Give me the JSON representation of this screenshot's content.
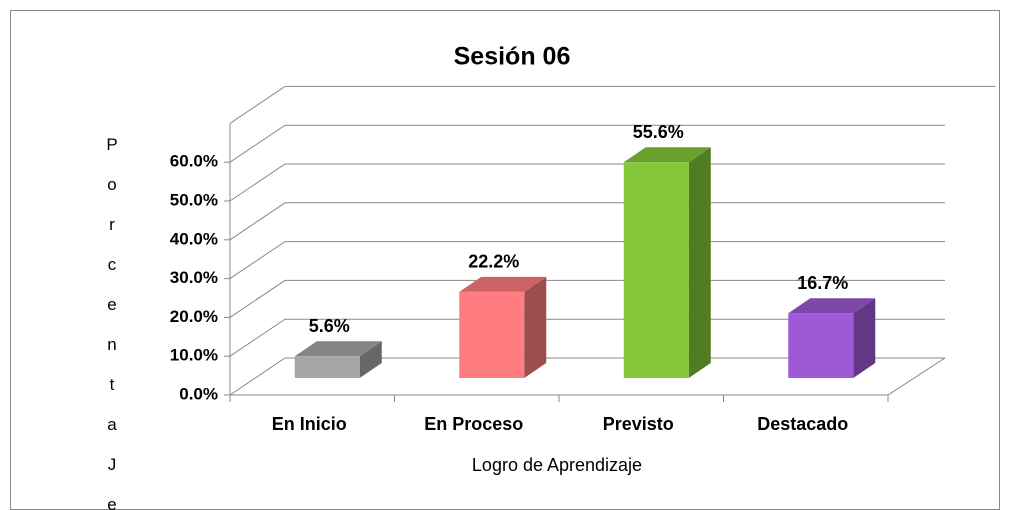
{
  "chart_data": {
    "type": "bar3d",
    "title": "Sesión 06",
    "x_label": "Logro de Aprendizaje",
    "y_label": "PorcentaJe",
    "categories": [
      "En Inicio",
      "En Proceso",
      "Previsto",
      "Destacado"
    ],
    "values": [
      5.6,
      22.2,
      55.6,
      16.7
    ],
    "value_labels": [
      "5.6%",
      "22.2%",
      "55.6%",
      "16.7%"
    ],
    "colors": [
      "#a6a6a6",
      "#ff7c80",
      "#84c83a",
      "#9e5ad6"
    ],
    "ylim": [
      0,
      70
    ],
    "yticks": [
      {
        "value": 0,
        "label": "0.0%"
      },
      {
        "value": 10,
        "label": "10.0%"
      },
      {
        "value": 20,
        "label": "20.0%"
      },
      {
        "value": 30,
        "label": "30.0%"
      },
      {
        "value": 40,
        "label": "40.0%"
      },
      {
        "value": 50,
        "label": "50.0%"
      },
      {
        "value": 60,
        "label": "60.0%"
      }
    ],
    "grid": true
  }
}
